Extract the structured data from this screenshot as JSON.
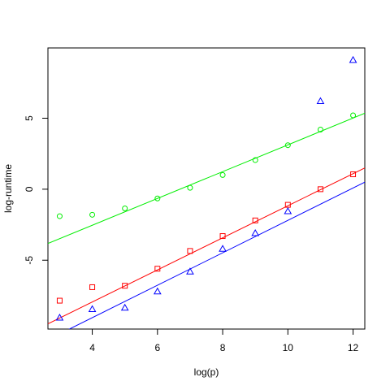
{
  "chart_data": {
    "type": "scatter",
    "title": "",
    "xlabel": "log(p)",
    "ylabel": "log-runtime",
    "xlim": [
      2.64,
      12.36
    ],
    "ylim": [
      -9.85,
      9.95
    ],
    "xticks": [
      4,
      6,
      8,
      10,
      12
    ],
    "yticks": [
      -5,
      0,
      5
    ],
    "grid": false,
    "legend": "none",
    "series": [
      {
        "color": "#00ee00",
        "marker": "circle",
        "x": [
          3,
          4,
          5,
          6,
          7,
          8,
          9,
          10,
          11,
          12
        ],
        "y": [
          -1.9,
          -1.8,
          -1.35,
          -0.65,
          0.1,
          1.0,
          2.05,
          3.1,
          4.2,
          5.2
        ],
        "fit": {
          "x": [
            2.64,
            12.36
          ],
          "y": [
            -3.82,
            5.35
          ]
        }
      },
      {
        "color": "#ff0000",
        "marker": "square",
        "x": [
          3,
          4,
          5,
          6,
          7,
          8,
          9,
          10,
          11,
          12
        ],
        "y": [
          -7.85,
          -6.9,
          -6.8,
          -5.6,
          -4.35,
          -3.3,
          -2.2,
          -1.1,
          0.0,
          1.05
        ],
        "fit": {
          "x": [
            2.64,
            12.36
          ],
          "y": [
            -9.48,
            1.5
          ]
        }
      },
      {
        "color": "#0000ff",
        "marker": "triangle",
        "x": [
          3,
          4,
          5,
          6,
          7,
          8,
          9,
          10,
          11,
          12
        ],
        "y": [
          -9.05,
          -8.45,
          -8.35,
          -7.2,
          -5.8,
          -4.2,
          -3.1,
          -1.55,
          6.2,
          9.1
        ],
        "fit": {
          "x": [
            2.64,
            12.36
          ],
          "y": [
            -10.6,
            0.5
          ]
        }
      }
    ]
  }
}
